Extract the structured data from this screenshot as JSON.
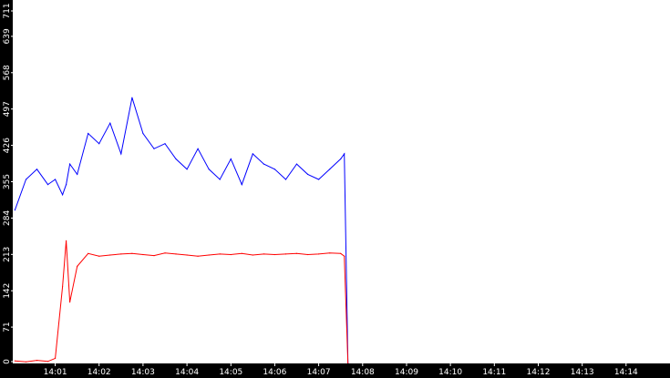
{
  "chart_data": {
    "type": "line",
    "title": "",
    "xlabel": "",
    "ylabel": "",
    "ylim": [
      0,
      711
    ],
    "xlim": [
      "14:00:02",
      "14:15:00"
    ],
    "yticks": [
      "0",
      "71",
      "142",
      "213",
      "284",
      "355",
      "426",
      "497",
      "568",
      "639",
      "711"
    ],
    "xticks": [
      "14:01",
      "14:02",
      "14:03",
      "14:04",
      "14:05",
      "14:06",
      "14:07",
      "14:08",
      "14:09",
      "14:10",
      "14:11",
      "14:12",
      "14:13",
      "14:14"
    ],
    "grid": false,
    "legend": "none",
    "colors": {
      "axis_bar": "#000000",
      "tick_label": "#ffffff",
      "background": "#ffffff",
      "series_blue": "#0000ff",
      "series_red": "#ff0000"
    },
    "x": [
      "14:00:05",
      "14:00:20",
      "14:00:35",
      "14:00:50",
      "14:01:00",
      "14:01:10",
      "14:01:15",
      "14:01:20",
      "14:01:30",
      "14:01:45",
      "14:02:00",
      "14:02:15",
      "14:02:30",
      "14:02:45",
      "14:03:00",
      "14:03:15",
      "14:03:30",
      "14:03:45",
      "14:04:00",
      "14:04:15",
      "14:04:30",
      "14:04:45",
      "14:05:00",
      "14:05:15",
      "14:05:30",
      "14:05:45",
      "14:06:00",
      "14:06:15",
      "14:06:30",
      "14:06:45",
      "14:07:00",
      "14:07:15",
      "14:07:30",
      "14:07:35",
      "14:07:40"
    ],
    "series": [
      {
        "color": "#0000ff",
        "values": [
          300,
          360,
          380,
          350,
          360,
          330,
          350,
          390,
          370,
          450,
          430,
          470,
          410,
          520,
          450,
          420,
          430,
          400,
          380,
          420,
          380,
          360,
          400,
          350,
          410,
          390,
          380,
          360,
          390,
          370,
          360,
          380,
          400,
          410,
          0
        ]
      },
      {
        "color": "#ff0000",
        "values": [
          5,
          3,
          6,
          4,
          10,
          150,
          240,
          120,
          190,
          215,
          210,
          212,
          214,
          215,
          213,
          211,
          216,
          214,
          212,
          210,
          212,
          214,
          213,
          215,
          212,
          214,
          213,
          214,
          215,
          213,
          214,
          216,
          215,
          210,
          0
        ]
      }
    ]
  }
}
